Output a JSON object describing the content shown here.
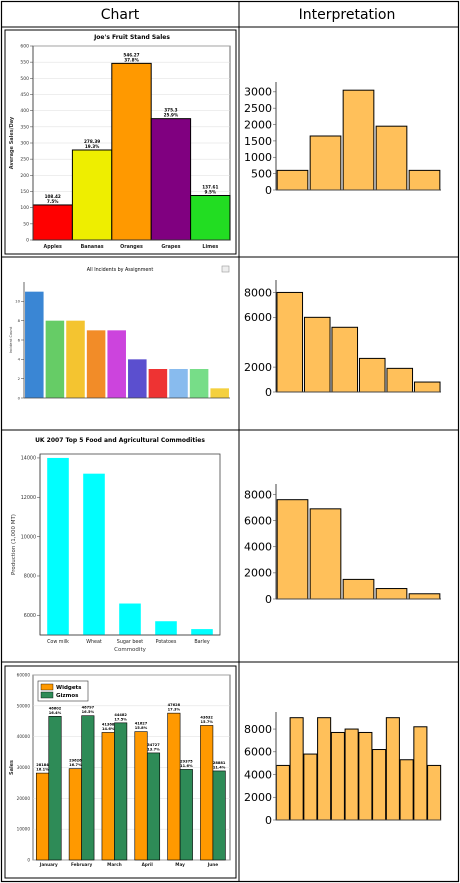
{
  "table": {
    "headers": [
      "Chart",
      "Interpretation"
    ]
  },
  "chart_data": [
    {
      "type": "bar",
      "title": "Joe's Fruit Stand Sales",
      "ylabel": "Average Sales/Day",
      "ylim": [
        0,
        600
      ],
      "yticks": [
        0,
        50,
        100,
        150,
        200,
        250,
        300,
        350,
        400,
        450,
        500,
        550,
        600
      ],
      "categories": [
        "Apples",
        "Bananas",
        "Oranges",
        "Grapes",
        "Limes"
      ],
      "values": [
        108.42,
        278.39,
        546.27,
        375.3,
        137.61
      ],
      "value_labels": [
        "108.42",
        "278.39",
        "546.27",
        "375.3",
        "137.61"
      ],
      "percent_labels": [
        "7.5%",
        "19.3%",
        "37.8%",
        "25.9%",
        "9.5%"
      ],
      "colors": [
        "#ff0000",
        "#eeee00",
        "#ff9900",
        "#800080",
        "#22dd22"
      ]
    },
    {
      "type": "bar",
      "ylim": [
        0,
        3300
      ],
      "yticks": [
        0,
        500,
        1000,
        1500,
        2000,
        2500,
        3000
      ],
      "values": [
        600,
        1650,
        3050,
        1950,
        600
      ],
      "color": "#ffc05a"
    },
    {
      "type": "bar",
      "title": "All Incidents by Assignment",
      "ylabel": "Incident Count",
      "ylim": [
        0,
        12
      ],
      "yticks": [
        0,
        2,
        4,
        6,
        8,
        10
      ],
      "values": [
        11,
        8,
        8,
        7,
        7,
        4,
        3,
        3,
        3,
        1
      ],
      "colors": [
        "#3a86d4",
        "#66cc66",
        "#f4c430",
        "#f28c28",
        "#cc44dd",
        "#5b4fcf",
        "#ee3333",
        "#88bbee",
        "#77dd88",
        "#f4d03f"
      ]
    },
    {
      "type": "bar",
      "ylim": [
        0,
        9000
      ],
      "yticks": [
        0,
        2000,
        6000,
        8000
      ],
      "values": [
        8000,
        6000,
        5200,
        2700,
        1900,
        800
      ],
      "color": "#ffc05a"
    },
    {
      "type": "bar",
      "title": "UK 2007 Top 5 Food and Agricultural Commodities",
      "xlabel": "Commodity",
      "ylabel": "Production (1,000 MT)",
      "ylim": [
        5000,
        14200
      ],
      "yticks": [
        6000,
        8000,
        10000,
        12000,
        14000
      ],
      "categories": [
        "Cow milk",
        "Wheat",
        "Sugar beet",
        "Potatoes",
        "Barley"
      ],
      "values": [
        14000,
        13200,
        6600,
        5700,
        5300
      ],
      "color": "#00ffff"
    },
    {
      "type": "bar",
      "ylim": [
        0,
        8800
      ],
      "yticks": [
        0,
        2000,
        4000,
        6000,
        8000
      ],
      "values": [
        7600,
        6900,
        1500,
        800,
        400
      ],
      "color": "#ffc05a"
    },
    {
      "type": "bar",
      "ylabel": "Sales",
      "ylim": [
        0,
        60000
      ],
      "yticks": [
        0,
        10000,
        20000,
        30000,
        40000,
        50000,
        60000
      ],
      "categories": [
        "January",
        "February",
        "March",
        "April",
        "May",
        "June"
      ],
      "series": [
        {
          "name": "Widgets",
          "color": "#ff9900",
          "values": [
            28184,
            29626,
            41368,
            41627,
            47628,
            43632
          ],
          "value_labels": [
            "28184",
            "29626",
            "41368",
            "41627",
            "47628",
            "43632"
          ],
          "percent_labels": [
            "16.1%",
            "16.7%",
            "14.6%",
            "15.8%",
            "17.3%",
            "15.7%"
          ]
        },
        {
          "name": "Gizmos",
          "color": "#2e8b57",
          "values": [
            46602,
            46797,
            44482,
            34727,
            29375,
            28881
          ],
          "value_labels": [
            "46602",
            "46797",
            "44482",
            "34727",
            "29375",
            "28881"
          ],
          "percent_labels": [
            "16.4%",
            "16.5%",
            "17.5%",
            "13.7%",
            "11.6%",
            "11.4%"
          ]
        }
      ]
    },
    {
      "type": "bar",
      "ylim": [
        0,
        9500
      ],
      "yticks": [
        0,
        2000,
        4000,
        6000,
        8000
      ],
      "values": [
        4800,
        9000,
        5800,
        9000,
        7700,
        8000,
        7700,
        6200,
        9000,
        5300,
        8200,
        4800
      ],
      "color": "#ffc05a"
    }
  ]
}
